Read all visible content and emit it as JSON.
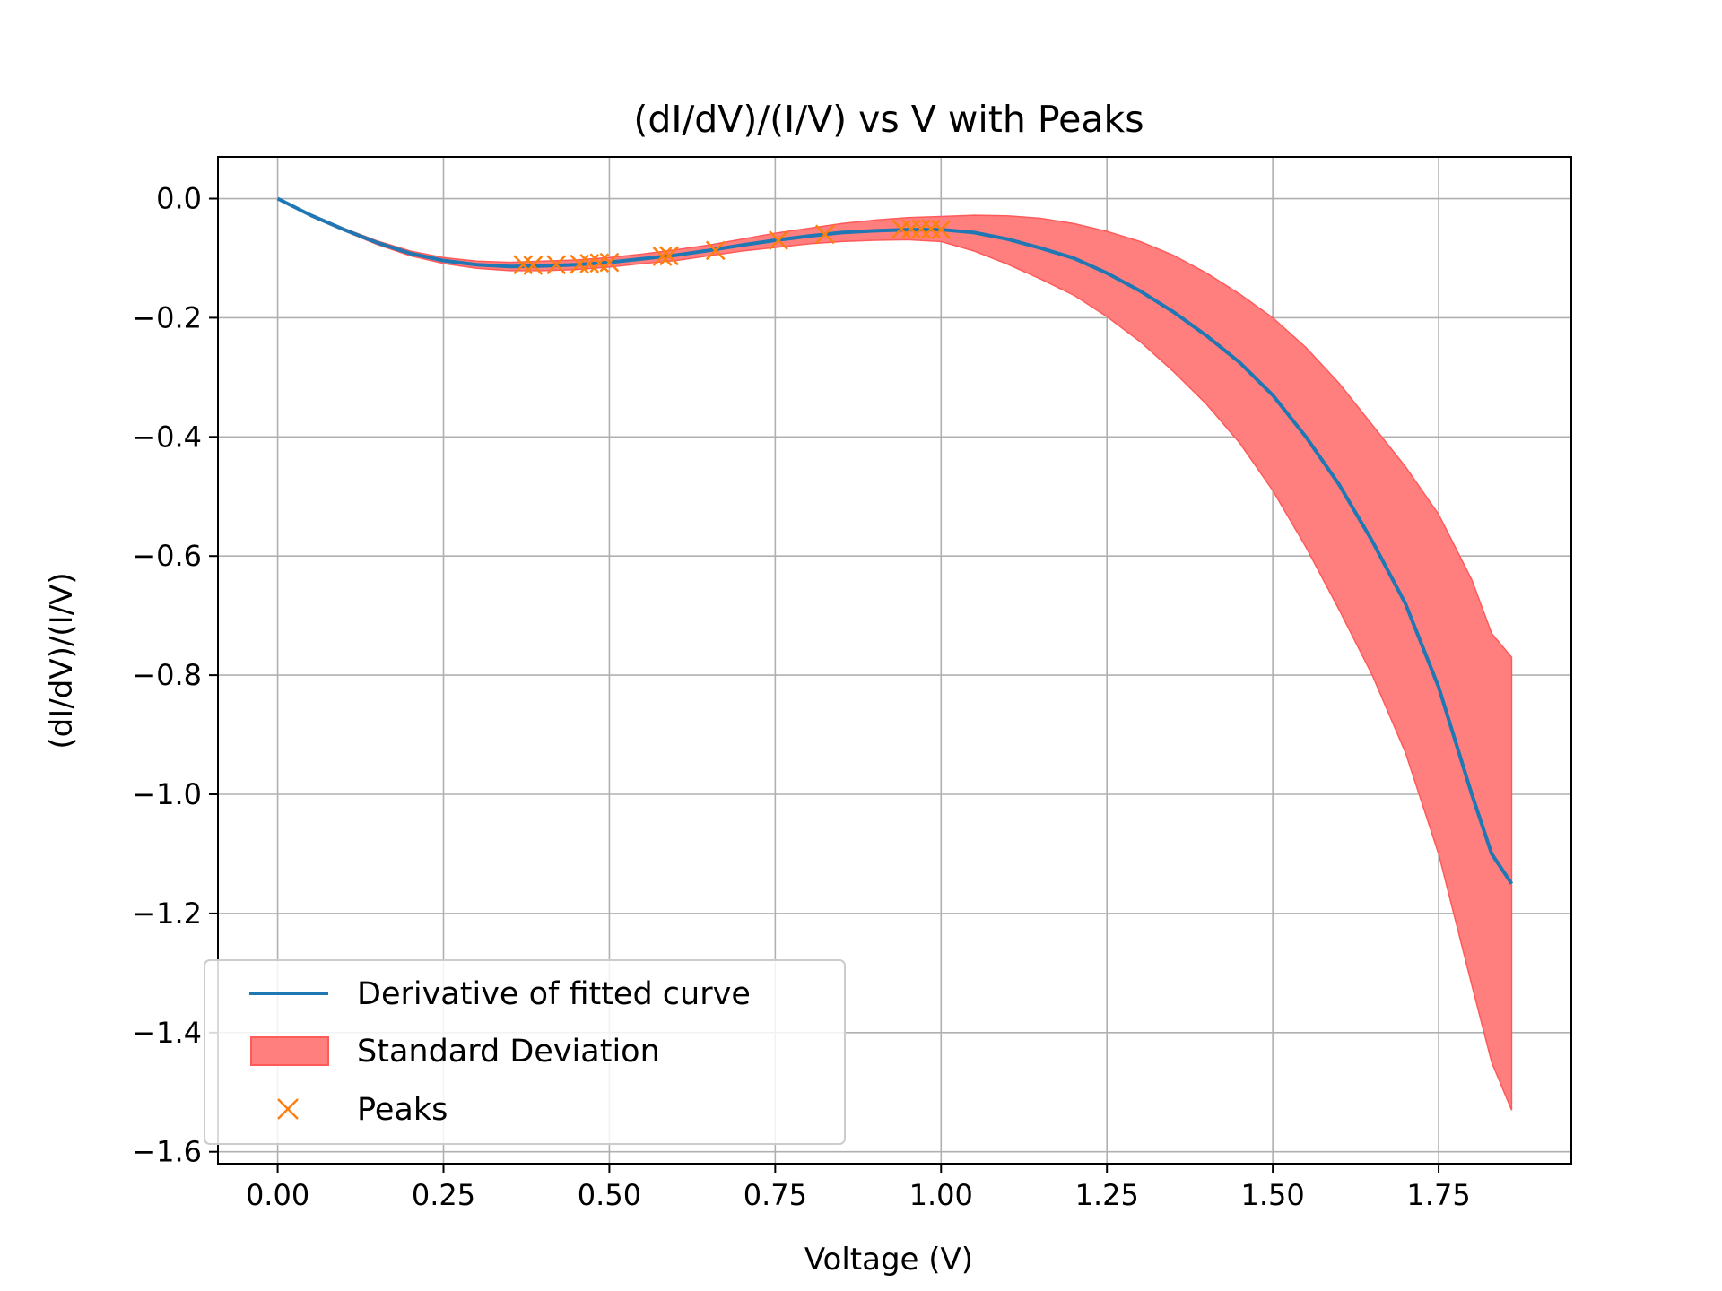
{
  "chart_data": {
    "type": "line",
    "title": "(dI/dV)/(I/V) vs V with Peaks",
    "xlabel": "Voltage (V)",
    "ylabel": "(dI/dV)/(I/V)",
    "xlim": [
      -0.09,
      1.95
    ],
    "ylim": [
      -1.62,
      0.07
    ],
    "xticks": [
      0.0,
      0.25,
      0.5,
      0.75,
      1.0,
      1.25,
      1.5,
      1.75
    ],
    "xtick_labels": [
      "0.00",
      "0.25",
      "0.50",
      "0.75",
      "1.00",
      "1.25",
      "1.50",
      "1.75"
    ],
    "yticks": [
      0.0,
      -0.2,
      -0.4,
      -0.6,
      -0.8,
      -1.0,
      -1.2,
      -1.4,
      -1.6
    ],
    "ytick_labels": [
      "0.0",
      "−0.2",
      "−0.4",
      "−0.6",
      "−0.8",
      "−1.0",
      "−1.2",
      "−1.4",
      "−1.6"
    ],
    "grid": true,
    "legend_position": "lower-left",
    "colors": {
      "line": "#1f77b4",
      "band_fill": "#ff7f7f",
      "band_edge": "#ff5a5a",
      "peaks": "#ff7f0e",
      "grid": "#b0b0b0"
    },
    "series": [
      {
        "name": "Derivative of fitted curve",
        "kind": "line",
        "x": [
          0.0,
          0.05,
          0.1,
          0.15,
          0.2,
          0.25,
          0.3,
          0.35,
          0.4,
          0.45,
          0.5,
          0.55,
          0.6,
          0.65,
          0.7,
          0.75,
          0.8,
          0.85,
          0.9,
          0.95,
          1.0,
          1.05,
          1.1,
          1.15,
          1.2,
          1.25,
          1.3,
          1.35,
          1.4,
          1.45,
          1.5,
          1.55,
          1.6,
          1.65,
          1.7,
          1.75,
          1.8,
          1.83,
          1.86
        ],
        "y": [
          0.0,
          -0.028,
          -0.052,
          -0.074,
          -0.092,
          -0.104,
          -0.111,
          -0.114,
          -0.113,
          -0.111,
          -0.107,
          -0.101,
          -0.095,
          -0.087,
          -0.078,
          -0.07,
          -0.063,
          -0.057,
          -0.054,
          -0.052,
          -0.052,
          -0.057,
          -0.068,
          -0.083,
          -0.1,
          -0.125,
          -0.155,
          -0.19,
          -0.23,
          -0.275,
          -0.33,
          -0.4,
          -0.48,
          -0.575,
          -0.68,
          -0.82,
          -1.0,
          -1.1,
          -1.15
        ]
      },
      {
        "name": "Standard Deviation",
        "kind": "band",
        "x": [
          0.0,
          0.05,
          0.1,
          0.15,
          0.2,
          0.25,
          0.3,
          0.35,
          0.4,
          0.45,
          0.5,
          0.55,
          0.6,
          0.65,
          0.7,
          0.75,
          0.8,
          0.85,
          0.9,
          0.95,
          1.0,
          1.05,
          1.1,
          1.15,
          1.2,
          1.25,
          1.3,
          1.35,
          1.4,
          1.45,
          1.5,
          1.55,
          1.6,
          1.65,
          1.7,
          1.75,
          1.8,
          1.83,
          1.86
        ],
        "upper": [
          0.0,
          -0.026,
          -0.05,
          -0.071,
          -0.088,
          -0.099,
          -0.105,
          -0.107,
          -0.105,
          -0.103,
          -0.099,
          -0.093,
          -0.086,
          -0.078,
          -0.068,
          -0.058,
          -0.05,
          -0.042,
          -0.036,
          -0.032,
          -0.03,
          -0.028,
          -0.029,
          -0.033,
          -0.042,
          -0.055,
          -0.072,
          -0.095,
          -0.125,
          -0.16,
          -0.2,
          -0.25,
          -0.31,
          -0.38,
          -0.45,
          -0.53,
          -0.64,
          -0.73,
          -0.77
        ],
        "lower": [
          0.0,
          -0.03,
          -0.054,
          -0.077,
          -0.096,
          -0.109,
          -0.117,
          -0.121,
          -0.121,
          -0.119,
          -0.115,
          -0.109,
          -0.104,
          -0.096,
          -0.088,
          -0.082,
          -0.076,
          -0.072,
          -0.07,
          -0.069,
          -0.072,
          -0.088,
          -0.11,
          -0.135,
          -0.162,
          -0.198,
          -0.24,
          -0.29,
          -0.345,
          -0.41,
          -0.49,
          -0.585,
          -0.69,
          -0.8,
          -0.93,
          -1.1,
          -1.32,
          -1.45,
          -1.53
        ]
      },
      {
        "name": "Peaks",
        "kind": "scatter",
        "x": [
          0.37,
          0.385,
          0.42,
          0.455,
          0.47,
          0.485,
          0.5,
          0.58,
          0.59,
          0.66,
          0.755,
          0.825,
          0.94,
          0.955,
          0.97,
          0.985,
          1.0
        ],
        "y": [
          -0.111,
          -0.112,
          -0.111,
          -0.11,
          -0.109,
          -0.108,
          -0.107,
          -0.097,
          -0.096,
          -0.087,
          -0.07,
          -0.06,
          -0.051,
          -0.051,
          -0.051,
          -0.051,
          -0.052
        ]
      }
    ]
  }
}
